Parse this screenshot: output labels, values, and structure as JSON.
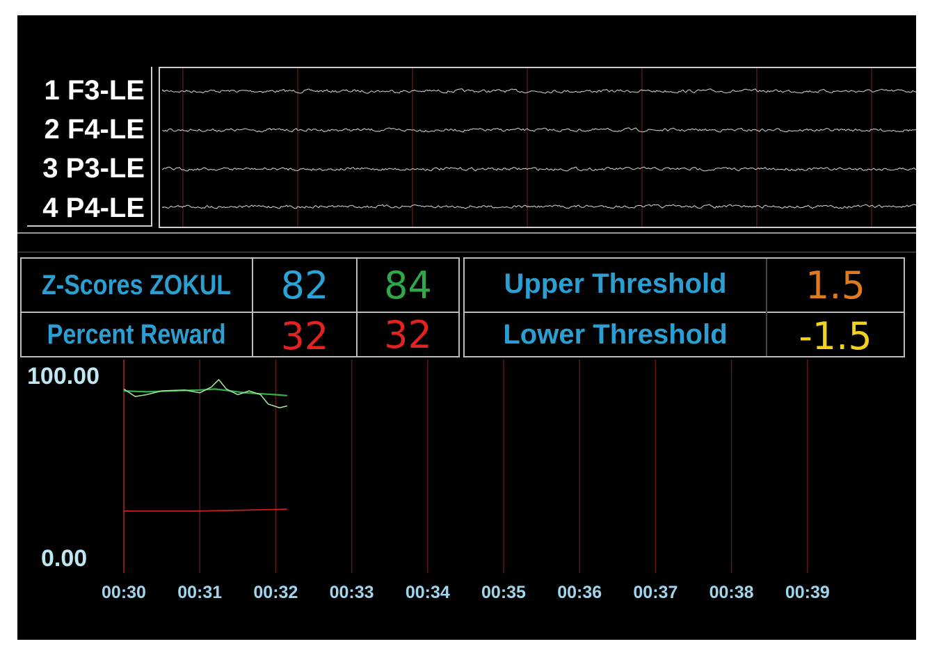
{
  "channels": [
    {
      "label": "1 F3-LE"
    },
    {
      "label": "2 F4-LE"
    },
    {
      "label": "3 P3-LE"
    },
    {
      "label": "4 P4-LE"
    }
  ],
  "scores": {
    "zscore_label": "Z-Scores ZOKUL",
    "zscore_value_1": "82",
    "zscore_value_2": "84",
    "reward_label": "Percent Reward",
    "reward_value_1": "32",
    "reward_value_2": "32"
  },
  "thresholds": {
    "upper_label": "Upper Threshold",
    "upper_value": "1.5",
    "lower_label": "Lower Threshold",
    "lower_value": "-1.5"
  },
  "trend": {
    "y_max_label": "100.00",
    "y_min_label": "0.00",
    "time_ticks": [
      "00:30",
      "00:31",
      "00:32",
      "00:33",
      "00:34",
      "00:35",
      "00:36",
      "00:37",
      "00:38",
      "00:39"
    ]
  },
  "colors": {
    "label_blue": "#2b9fd1",
    "z1": "#2aa3d6",
    "z2": "#2fa84a",
    "reward": "#e2231f",
    "upper": "#e07a1f",
    "lower": "#f2d21a"
  }
}
